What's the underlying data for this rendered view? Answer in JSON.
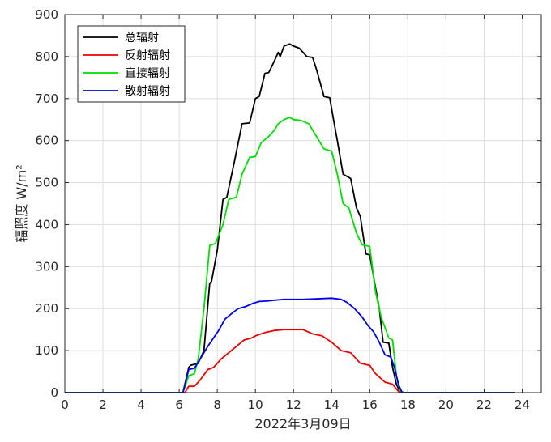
{
  "chart_data": {
    "type": "line",
    "title": "",
    "xlabel": "2022年3月09日",
    "ylabel": "辐照度 W/m²",
    "xlim": [
      0,
      25
    ],
    "ylim": [
      0,
      900
    ],
    "xticks": [
      0,
      2,
      4,
      6,
      8,
      10,
      12,
      14,
      16,
      18,
      20,
      22,
      24
    ],
    "yticks": [
      0,
      100,
      200,
      300,
      400,
      500,
      600,
      700,
      800,
      900
    ],
    "grid": true,
    "legend_position": "top-left",
    "series": [
      {
        "name": "总辐射",
        "color": "#000000",
        "x": [
          0,
          6.2,
          6.5,
          6.6,
          7.0,
          7.3,
          7.6,
          7.7,
          8.0,
          8.3,
          8.5,
          8.9,
          9.3,
          9.7,
          10.0,
          10.2,
          10.5,
          10.7,
          11.0,
          11.2,
          11.3,
          11.5,
          11.8,
          12.0,
          12.3,
          12.7,
          13.0,
          13.2,
          13.6,
          13.9,
          14.1,
          14.3,
          14.6,
          15.0,
          15.3,
          15.5,
          15.8,
          16.0,
          16.3,
          16.5,
          16.7,
          17.0,
          17.2,
          17.4,
          17.6,
          17.8,
          18.0,
          23.6
        ],
        "y": [
          0,
          0,
          60,
          65,
          70,
          100,
          260,
          265,
          340,
          460,
          465,
          550,
          640,
          642,
          700,
          705,
          760,
          762,
          790,
          810,
          800,
          825,
          830,
          825,
          820,
          800,
          798,
          770,
          705,
          702,
          650,
          600,
          520,
          510,
          440,
          420,
          330,
          328,
          250,
          200,
          120,
          118,
          60,
          20,
          0,
          0,
          0,
          0
        ]
      },
      {
        "name": "反射辐射",
        "color": "#ee0000",
        "x": [
          0,
          6.3,
          6.5,
          6.8,
          7.1,
          7.5,
          7.8,
          8.2,
          8.6,
          9.0,
          9.4,
          9.8,
          10.0,
          10.5,
          11.0,
          11.5,
          12.0,
          12.5,
          13.0,
          13.5,
          14.0,
          14.5,
          15.0,
          15.5,
          16.0,
          16.3,
          16.8,
          17.2,
          17.5,
          17.7,
          23.6
        ],
        "y": [
          0,
          0,
          15,
          15,
          30,
          55,
          60,
          80,
          95,
          110,
          125,
          130,
          135,
          143,
          148,
          150,
          150,
          150,
          140,
          135,
          120,
          100,
          95,
          70,
          65,
          45,
          25,
          20,
          3,
          0,
          0
        ]
      },
      {
        "name": "直接辐射",
        "color": "#00dd00",
        "x": [
          0,
          6.2,
          6.5,
          6.8,
          7.0,
          7.3,
          7.6,
          7.9,
          8.3,
          8.6,
          9.0,
          9.3,
          9.7,
          10.0,
          10.3,
          10.7,
          11.0,
          11.2,
          11.5,
          11.8,
          12.0,
          12.4,
          12.8,
          13.2,
          13.6,
          14.0,
          14.3,
          14.6,
          14.9,
          15.3,
          15.6,
          16.0,
          16.3,
          16.6,
          17.0,
          17.2,
          17.4,
          17.6,
          17.8,
          23.6
        ],
        "y": [
          0,
          0,
          40,
          45,
          80,
          200,
          350,
          355,
          400,
          460,
          465,
          520,
          560,
          562,
          595,
          610,
          625,
          640,
          650,
          655,
          650,
          648,
          640,
          610,
          580,
          575,
          520,
          450,
          440,
          380,
          352,
          348,
          240,
          180,
          130,
          125,
          40,
          5,
          0,
          0
        ]
      },
      {
        "name": "散射辐射",
        "color": "#0000ee",
        "x": [
          0,
          6.2,
          6.5,
          6.8,
          7.1,
          7.5,
          7.8,
          8.1,
          8.4,
          8.8,
          9.1,
          9.5,
          9.9,
          10.2,
          10.6,
          11.0,
          11.5,
          12.0,
          12.5,
          13.0,
          13.5,
          14.0,
          14.5,
          14.8,
          15.2,
          15.6,
          15.9,
          16.2,
          16.5,
          16.8,
          17.1,
          17.3,
          17.5,
          17.7,
          23.6
        ],
        "y": [
          0,
          0,
          55,
          58,
          80,
          110,
          130,
          150,
          175,
          190,
          200,
          205,
          213,
          217,
          218,
          220,
          222,
          222,
          222,
          223,
          224,
          225,
          222,
          215,
          200,
          180,
          160,
          145,
          120,
          90,
          85,
          60,
          20,
          0,
          0
        ]
      }
    ]
  }
}
